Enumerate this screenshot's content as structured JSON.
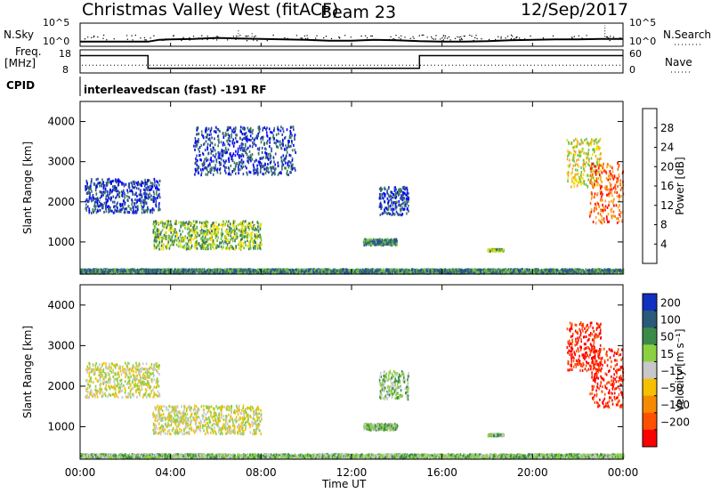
{
  "header": {
    "station": "Christmas Valley West (fitACF)",
    "beam": "Beam 23",
    "date": "12/Sep/2017"
  },
  "panel_labels": {
    "nsky": "N.Sky",
    "nsearch": "N.Search",
    "freq_line1": "Freq.",
    "freq_line2": "[MHz]",
    "nave": "Nave",
    "cpid": "CPID",
    "program": "interleavedscan (fast) -191 RF"
  },
  "noise_axis": {
    "left_ticks": [
      "10^5",
      "10^0"
    ],
    "right_ticks": [
      "10^5",
      "10^0"
    ]
  },
  "freq_axis": {
    "left_ticks": [
      "18",
      "8"
    ],
    "right_ticks": [
      "60",
      "0"
    ]
  },
  "chart_data": [
    {
      "type": "line",
      "name": "sky-noise",
      "ylabel": "N.Sky",
      "y2label": "N.Search",
      "x": [
        0,
        1,
        2,
        3,
        3.5,
        4,
        5,
        6,
        7,
        8,
        9,
        10,
        11,
        12,
        13,
        14,
        15,
        16,
        17,
        18,
        19,
        20,
        21,
        22,
        23,
        24
      ],
      "y_log10": [
        1.0,
        1.0,
        1.0,
        1.0,
        1.4,
        1.5,
        1.6,
        1.8,
        1.7,
        1.6,
        1.5,
        1.4,
        1.2,
        1.2,
        1.4,
        1.3,
        1.1,
        1.0,
        1.0,
        1.1,
        1.3,
        1.4,
        1.5,
        1.5,
        1.6,
        1.6
      ]
    },
    {
      "type": "line",
      "name": "frequency",
      "ylabel": "Freq. [MHz]",
      "y2label": "Nave",
      "ylim": [
        8,
        18
      ],
      "x": [
        0,
        3,
        3,
        15,
        15,
        24
      ],
      "y": [
        15.5,
        15.5,
        10.0,
        10.0,
        15.5,
        15.5
      ],
      "nave_level": 20
    },
    {
      "type": "heatmap",
      "name": "power",
      "ylabel": "Slant Range [km]",
      "ylim": [
        200,
        4500
      ],
      "yticks": [
        1000,
        2000,
        3000,
        4000
      ],
      "colorbar": {
        "label": "Power [dB]",
        "ticks": [
          4,
          8,
          12,
          16,
          20,
          24,
          28
        ],
        "colors": [
          "#0000ff",
          "#2a4a9e",
          "#3c7a5a",
          "#6fc14a",
          "#f0e000",
          "#f5a623",
          "#ff6400",
          "#ff0000"
        ]
      },
      "regions": [
        {
          "t": [
            0.0,
            24.0
          ],
          "r": [
            250,
            350
          ],
          "level": 2
        },
        {
          "t": [
            3.2,
            8.0
          ],
          "r": [
            850,
            1550
          ],
          "level": 3
        },
        {
          "t": [
            0.2,
            3.5
          ],
          "r": [
            1750,
            2600
          ],
          "level": 1
        },
        {
          "t": [
            5.0,
            9.5
          ],
          "r": [
            2700,
            3900
          ],
          "level": 1
        },
        {
          "t": [
            12.5,
            14.0
          ],
          "r": [
            950,
            1100
          ],
          "level": 2
        },
        {
          "t": [
            13.2,
            14.5
          ],
          "r": [
            1700,
            2400
          ],
          "level": 1
        },
        {
          "t": [
            18.0,
            18.7
          ],
          "r": [
            800,
            850
          ],
          "level": 3
        },
        {
          "t": [
            21.5,
            23.0
          ],
          "r": [
            2400,
            3600
          ],
          "level": 4
        },
        {
          "t": [
            22.5,
            24.0
          ],
          "r": [
            1500,
            3000
          ],
          "level": 6
        }
      ]
    },
    {
      "type": "heatmap",
      "name": "velocity",
      "ylabel": "Slant Range [km]",
      "ylim": [
        200,
        4500
      ],
      "yticks": [
        1000,
        2000,
        3000,
        4000
      ],
      "colorbar": {
        "label": "Velocity [m s⁻¹]",
        "ticks": [
          "200",
          "100",
          "50",
          "15",
          "−15",
          "−50",
          "−100",
          "−200"
        ],
        "colors": [
          "#1030c0",
          "#2a5a7a",
          "#3c8a4a",
          "#8ad040",
          "#c8c8c8",
          "#f5c000",
          "#f58a00",
          "#ff5000",
          "#ff0000"
        ]
      },
      "regions": [
        {
          "t": [
            0.0,
            24.0
          ],
          "r": [
            250,
            350
          ],
          "level": 3
        },
        {
          "t": [
            3.2,
            8.0
          ],
          "r": [
            850,
            1550
          ],
          "level": 4
        },
        {
          "t": [
            0.2,
            3.5
          ],
          "r": [
            1750,
            2600
          ],
          "level": 4
        },
        {
          "t": [
            12.5,
            14.0
          ],
          "r": [
            950,
            1100
          ],
          "level": 3
        },
        {
          "t": [
            13.2,
            14.5
          ],
          "r": [
            1700,
            2400
          ],
          "level": 3
        },
        {
          "t": [
            18.0,
            18.7
          ],
          "r": [
            800,
            850
          ],
          "level": 3
        },
        {
          "t": [
            21.5,
            23.0
          ],
          "r": [
            2400,
            3600
          ],
          "level": 8
        },
        {
          "t": [
            22.5,
            24.0
          ],
          "r": [
            1500,
            3000
          ],
          "level": 8
        }
      ]
    }
  ],
  "time_axis": {
    "ticks": [
      "00:00",
      "04:00",
      "08:00",
      "12:00",
      "16:00",
      "20:00",
      "00:00"
    ],
    "label": "Time UT"
  }
}
